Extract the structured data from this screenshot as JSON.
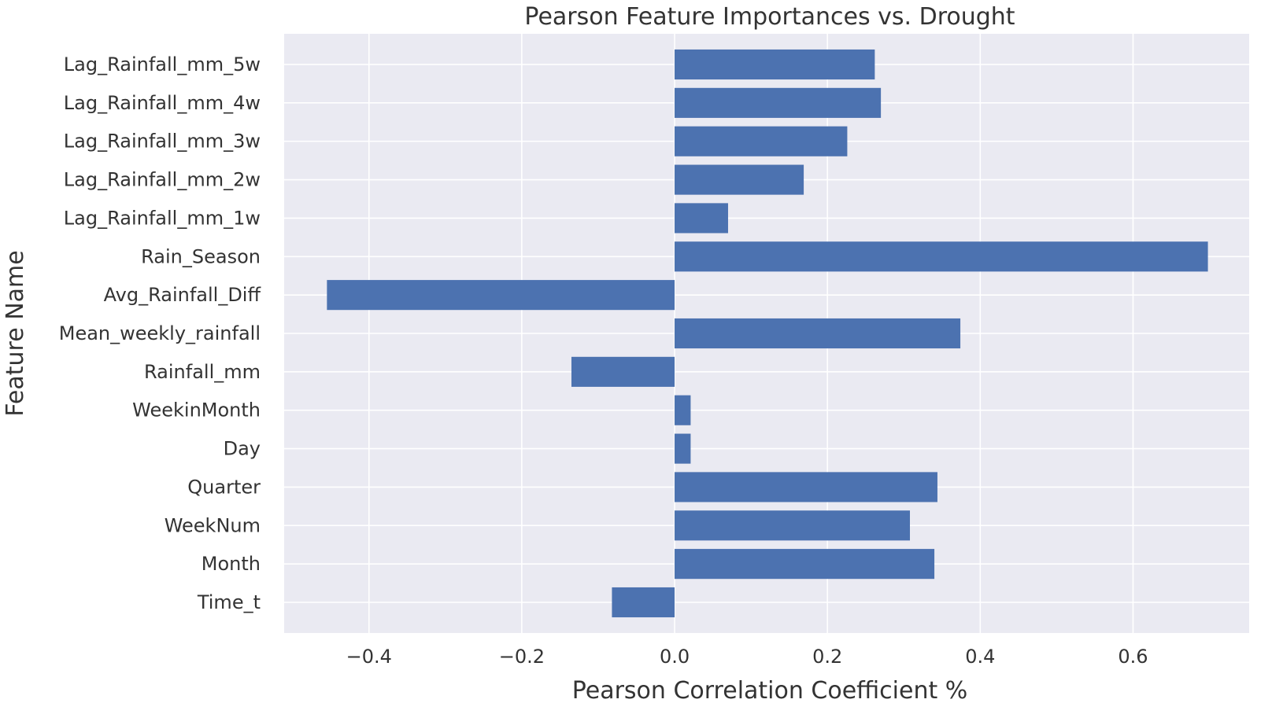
{
  "chart_data": {
    "type": "bar",
    "orientation": "horizontal",
    "title": "Pearson Feature Importances vs. Drought",
    "xlabel": "Pearson Correlation Coefficient %",
    "ylabel": "Feature Name",
    "xlim": [
      -0.511,
      0.752
    ],
    "xticks": [
      -0.4,
      -0.2,
      0.0,
      0.2,
      0.4,
      0.6
    ],
    "xtick_labels": [
      "−0.4",
      "−0.2",
      "0.0",
      "0.2",
      "0.4",
      "0.6"
    ],
    "grid": true,
    "bar_color": "#4C72B0",
    "plot_background": "#EAEAF2",
    "grid_color": "#FFFFFF",
    "categories": [
      "Lag_Rainfall_mm_5w",
      "Lag_Rainfall_mm_4w",
      "Lag_Rainfall_mm_3w",
      "Lag_Rainfall_mm_2w",
      "Lag_Rainfall_mm_1w",
      "Rain_Season",
      "Avg_Rainfall_Diff",
      "Mean_weekly_rainfall",
      "Rainfall_mm",
      "WeekinMonth",
      "Day",
      "Quarter",
      "WeekNum",
      "Month",
      "Time_t"
    ],
    "values": [
      0.262,
      0.27,
      0.226,
      0.169,
      0.07,
      0.698,
      -0.455,
      0.374,
      -0.135,
      0.021,
      0.021,
      0.344,
      0.308,
      0.34,
      -0.082
    ]
  }
}
